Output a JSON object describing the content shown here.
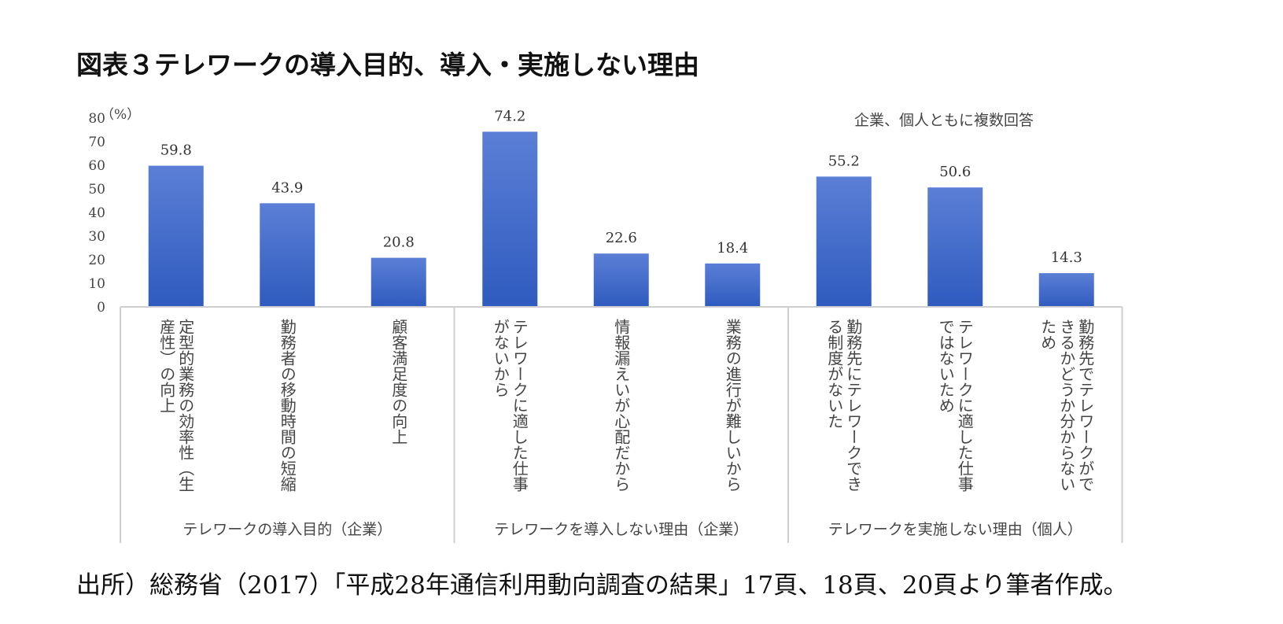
{
  "title": "図表３テレワークの導入目的、導入・実施しない理由",
  "source": "出所）総務省（2017）「平成28年通信利用動向調査の結果」17頁、18頁、20頁より筆者作成。",
  "chart_data": {
    "type": "bar",
    "ylabel": "（%）",
    "ylim": [
      0,
      80
    ],
    "yticks": [
      0,
      10,
      20,
      30,
      40,
      50,
      60,
      70,
      80
    ],
    "note": "企業、個人ともに複数回答",
    "bar_color_top": "#5b7fd6",
    "bar_color_bottom": "#2f5bbf",
    "categories": [
      [
        "定型的業務の効率性（生",
        "産性）の向上"
      ],
      [
        "勤務者の移動時間の短縮"
      ],
      [
        "顧客満足度の向上"
      ],
      [
        "テレワークに適した仕事",
        "がないから"
      ],
      [
        "情報漏えいが心配だから"
      ],
      [
        "業務の進行が難しいから"
      ],
      [
        "勤務先にテレワークでき",
        "る制度がないた"
      ],
      [
        "テレワークに適した仕事",
        "ではないため"
      ],
      [
        "勤務先でテレワークがで",
        "きるかどうか分からない",
        "ため"
      ]
    ],
    "values": [
      59.8,
      43.9,
      20.8,
      74.2,
      22.6,
      18.4,
      55.2,
      50.6,
      14.3
    ],
    "value_labels": [
      "59.8",
      "43.9",
      "20.8",
      "74.2",
      "22.6",
      "18.4",
      "55.2",
      "50.6",
      "14.3"
    ],
    "groups": [
      {
        "label": "テレワークの導入目的（企業）",
        "count": 3
      },
      {
        "label": "テレワークを導入しない理由（企業）",
        "count": 3
      },
      {
        "label": "テレワークを実施しない理由（個人）",
        "count": 3
      }
    ]
  }
}
